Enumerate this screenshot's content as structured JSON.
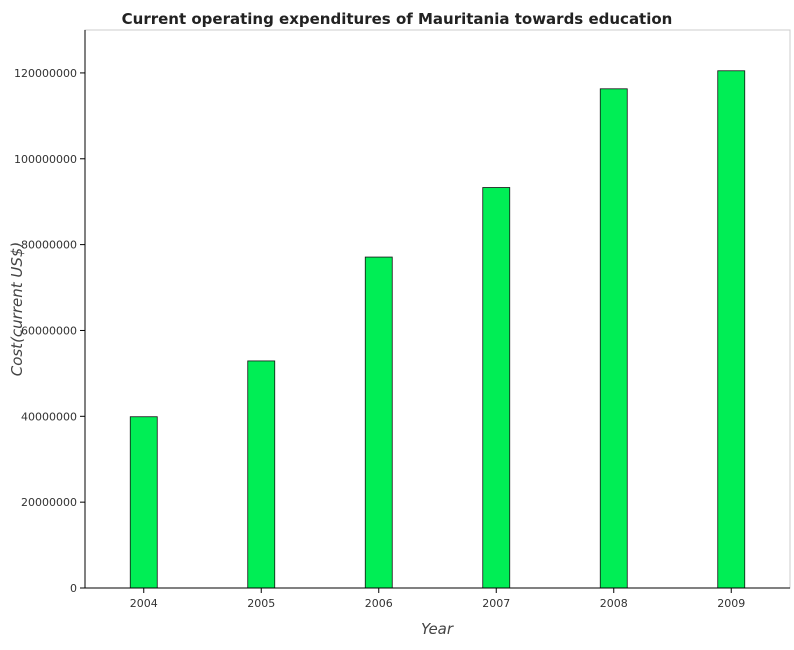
{
  "chart_data": {
    "type": "bar",
    "title": "Current operating expenditures of Mauritania towards education",
    "xlabel": "Year",
    "ylabel": "Cost(current US$)",
    "categories": [
      "2004",
      "2005",
      "2006",
      "2007",
      "2008",
      "2009"
    ],
    "values": [
      39900000,
      52900000,
      77100000,
      93300000,
      116300000,
      120500000
    ],
    "ylim": [
      0,
      130000000
    ],
    "yticks": [
      0,
      20000000,
      40000000,
      60000000,
      80000000,
      100000000,
      120000000
    ],
    "ytick_labels": [
      "0",
      "20000000",
      "40000000",
      "60000000",
      "80000000",
      "100000000",
      "120000000"
    ],
    "bar_color": "#00ee55",
    "bar_edge_color": "#111111",
    "grid": false,
    "legend": "none"
  }
}
